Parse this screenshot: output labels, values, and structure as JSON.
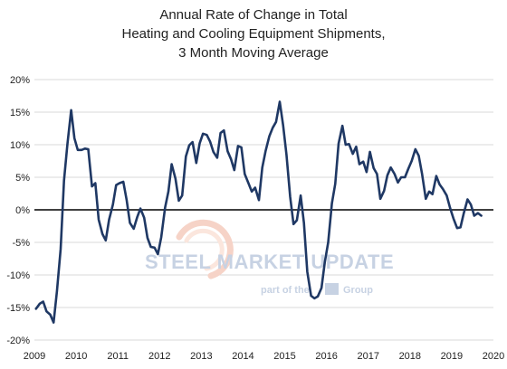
{
  "chart_data": {
    "type": "line",
    "title": [
      "Annual Rate of Change in Total",
      "Heating and Cooling Equipment Shipments,",
      "3 Month Moving Average"
    ],
    "xlabel": "",
    "ylabel": "",
    "xlim": [
      2009,
      2020
    ],
    "ylim": [
      -20,
      20
    ],
    "x_ticks": [
      "2009",
      "2010",
      "2011",
      "2012",
      "2013",
      "2014",
      "2015",
      "2016",
      "2017",
      "2018",
      "2019",
      "2020"
    ],
    "y_ticks": [
      "-20%",
      "-15%",
      "-10%",
      "-5%",
      "0%",
      "5%",
      "10%",
      "15%",
      "20%"
    ],
    "y_tick_values": [
      -20,
      -15,
      -10,
      -5,
      0,
      5,
      10,
      15,
      20
    ],
    "grid": "horizontal",
    "legend": "none",
    "series": [
      {
        "color": "#1f3864",
        "points": [
          [
            2009.04,
            -15.2
          ],
          [
            2009.13,
            -14.4
          ],
          [
            2009.21,
            -14.1
          ],
          [
            2009.29,
            -15.6
          ],
          [
            2009.38,
            -16.1
          ],
          [
            2009.46,
            -17.3
          ],
          [
            2009.54,
            -12.5
          ],
          [
            2009.63,
            -6.0
          ],
          [
            2009.71,
            4.5
          ],
          [
            2009.79,
            10.0
          ],
          [
            2009.88,
            15.3
          ],
          [
            2009.96,
            11.0
          ],
          [
            2010.04,
            9.2
          ],
          [
            2010.13,
            9.2
          ],
          [
            2010.21,
            9.4
          ],
          [
            2010.29,
            9.3
          ],
          [
            2010.38,
            3.6
          ],
          [
            2010.46,
            4.1
          ],
          [
            2010.54,
            -1.5
          ],
          [
            2010.63,
            -3.7
          ],
          [
            2010.71,
            -4.7
          ],
          [
            2010.79,
            -1.5
          ],
          [
            2010.88,
            0.8
          ],
          [
            2010.96,
            3.8
          ],
          [
            2011.04,
            4.1
          ],
          [
            2011.13,
            4.3
          ],
          [
            2011.21,
            1.5
          ],
          [
            2011.29,
            -2.0
          ],
          [
            2011.38,
            -2.9
          ],
          [
            2011.46,
            -1.2
          ],
          [
            2011.54,
            0.2
          ],
          [
            2011.63,
            -1.2
          ],
          [
            2011.71,
            -4.3
          ],
          [
            2011.79,
            -5.7
          ],
          [
            2011.88,
            -5.8
          ],
          [
            2011.96,
            -6.8
          ],
          [
            2012.04,
            -4.2
          ],
          [
            2012.13,
            0.3
          ],
          [
            2012.21,
            2.8
          ],
          [
            2012.29,
            7.0
          ],
          [
            2012.38,
            4.8
          ],
          [
            2012.46,
            1.4
          ],
          [
            2012.54,
            2.2
          ],
          [
            2012.63,
            8.2
          ],
          [
            2012.71,
            9.9
          ],
          [
            2012.79,
            10.4
          ],
          [
            2012.88,
            7.2
          ],
          [
            2012.96,
            10.2
          ],
          [
            2013.04,
            11.7
          ],
          [
            2013.13,
            11.5
          ],
          [
            2013.21,
            10.5
          ],
          [
            2013.29,
            8.9
          ],
          [
            2013.38,
            8.0
          ],
          [
            2013.46,
            11.8
          ],
          [
            2013.54,
            12.2
          ],
          [
            2013.63,
            9.0
          ],
          [
            2013.71,
            7.8
          ],
          [
            2013.79,
            6.1
          ],
          [
            2013.88,
            9.8
          ],
          [
            2013.96,
            9.6
          ],
          [
            2014.04,
            5.5
          ],
          [
            2014.13,
            4.1
          ],
          [
            2014.21,
            2.8
          ],
          [
            2014.29,
            3.4
          ],
          [
            2014.38,
            1.5
          ],
          [
            2014.46,
            6.5
          ],
          [
            2014.54,
            9.0
          ],
          [
            2014.63,
            11.3
          ],
          [
            2014.71,
            12.6
          ],
          [
            2014.79,
            13.5
          ],
          [
            2014.88,
            16.6
          ],
          [
            2014.96,
            13.0
          ],
          [
            2015.04,
            8.5
          ],
          [
            2015.13,
            2.0
          ],
          [
            2015.21,
            -2.2
          ],
          [
            2015.29,
            -1.6
          ],
          [
            2015.38,
            2.2
          ],
          [
            2015.46,
            -2.0
          ],
          [
            2015.54,
            -9.5
          ],
          [
            2015.63,
            -13.2
          ],
          [
            2015.71,
            -13.6
          ],
          [
            2015.79,
            -13.3
          ],
          [
            2015.88,
            -12.0
          ],
          [
            2015.96,
            -8.0
          ],
          [
            2016.04,
            -5.0
          ],
          [
            2016.13,
            1.0
          ],
          [
            2016.21,
            4.0
          ],
          [
            2016.29,
            10.2
          ],
          [
            2016.38,
            12.9
          ],
          [
            2016.46,
            10.0
          ],
          [
            2016.54,
            10.1
          ],
          [
            2016.63,
            8.6
          ],
          [
            2016.71,
            9.7
          ],
          [
            2016.79,
            7.0
          ],
          [
            2016.88,
            7.4
          ],
          [
            2016.96,
            5.8
          ],
          [
            2017.04,
            8.9
          ],
          [
            2017.13,
            6.4
          ],
          [
            2017.21,
            5.5
          ],
          [
            2017.29,
            1.7
          ],
          [
            2017.38,
            2.9
          ],
          [
            2017.46,
            5.3
          ],
          [
            2017.54,
            6.5
          ],
          [
            2017.63,
            5.5
          ],
          [
            2017.71,
            4.2
          ],
          [
            2017.79,
            5.0
          ],
          [
            2017.88,
            5.0
          ],
          [
            2017.96,
            6.3
          ],
          [
            2018.04,
            7.5
          ],
          [
            2018.13,
            9.3
          ],
          [
            2018.21,
            8.3
          ],
          [
            2018.29,
            5.5
          ],
          [
            2018.38,
            1.7
          ],
          [
            2018.46,
            2.8
          ],
          [
            2018.54,
            2.4
          ],
          [
            2018.63,
            5.2
          ],
          [
            2018.71,
            3.9
          ],
          [
            2018.79,
            3.2
          ],
          [
            2018.88,
            2.2
          ],
          [
            2018.96,
            0.3
          ],
          [
            2019.04,
            -1.3
          ],
          [
            2019.13,
            -2.8
          ],
          [
            2019.21,
            -2.7
          ],
          [
            2019.29,
            -0.5
          ],
          [
            2019.38,
            1.6
          ],
          [
            2019.46,
            0.8
          ],
          [
            2019.54,
            -0.9
          ],
          [
            2019.63,
            -0.5
          ],
          [
            2019.71,
            -0.9
          ]
        ]
      }
    ]
  },
  "watermark": {
    "main": "STEEL MARKET UPDATE",
    "sub_prefix": "part of the",
    "sub_suffix": "Group"
  }
}
